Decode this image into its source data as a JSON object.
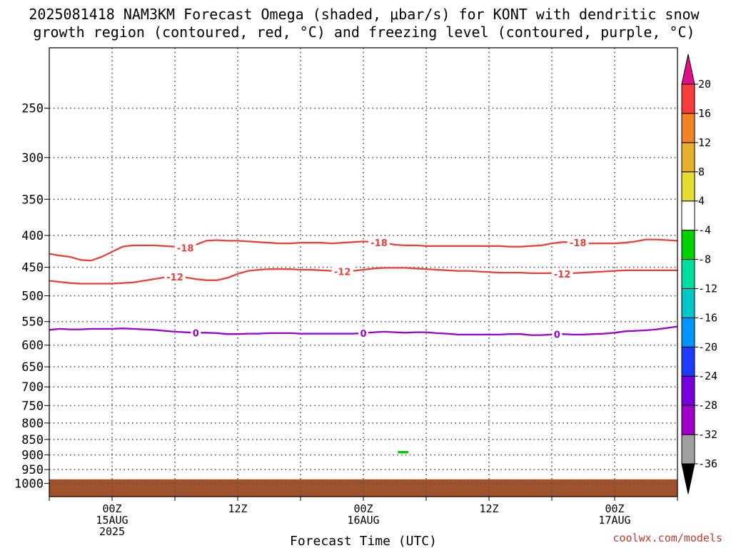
{
  "title_line1": "2025081418 NAM3KM Forecast Omega (shaded, μbar/s) for KONT with dendritic snow",
  "title_line2": "growth region (contoured, red, °C) and freezing level (contoured, purple, °C)",
  "credit": "coolwx.com/models",
  "chart_data": {
    "type": "time-height contour",
    "xlabel": "Forecast Time (UTC)",
    "ylabel": "",
    "x_units": "forecast hours from 2025-08-14 18Z",
    "xlim": [
      0,
      60
    ],
    "y_units": "hPa",
    "ylim": [
      200,
      1050
    ],
    "y_scale": "log",
    "y_ticks": [
      250,
      300,
      350,
      400,
      450,
      500,
      550,
      600,
      650,
      700,
      750,
      800,
      850,
      900,
      950,
      1000
    ],
    "x_ticks": [
      {
        "x": 6,
        "lines": [
          "00Z",
          "15AUG",
          "2025"
        ]
      },
      {
        "x": 18,
        "lines": [
          "12Z"
        ]
      },
      {
        "x": 30,
        "lines": [
          "00Z",
          "16AUG"
        ]
      },
      {
        "x": 42,
        "lines": [
          "12Z"
        ]
      },
      {
        "x": 54,
        "lines": [
          "00Z",
          "17AUG"
        ]
      }
    ],
    "grid": true,
    "series": [
      {
        "name": "-18",
        "color": "#e8413c",
        "label_at": [
          13,
          31.5,
          50.5
        ],
        "x": [
          0,
          1,
          2,
          3,
          4,
          5,
          6,
          7,
          8,
          9,
          10,
          11,
          12,
          13,
          14,
          15,
          16,
          17,
          18,
          19,
          20,
          21,
          22,
          23,
          24,
          25,
          26,
          27,
          28,
          29,
          30,
          31,
          32,
          33,
          34,
          35,
          36,
          37,
          38,
          39,
          40,
          41,
          42,
          43,
          44,
          45,
          46,
          47,
          48,
          49,
          50,
          51,
          52,
          53,
          54,
          55,
          56,
          57,
          58,
          59,
          60
        ],
        "y": [
          428,
          431,
          433,
          438,
          439,
          433,
          425,
          417,
          415,
          415,
          415,
          416,
          417,
          419,
          414,
          408,
          407,
          408,
          408,
          409,
          410,
          411,
          412,
          412,
          411,
          411,
          411,
          412,
          411,
          410,
          409,
          410,
          411,
          414,
          415,
          415,
          416,
          416,
          416,
          416,
          416,
          416,
          416,
          416,
          417,
          417,
          416,
          415,
          412,
          410,
          410,
          412,
          412,
          412,
          412,
          411,
          409,
          406,
          406,
          407,
          408
        ]
      },
      {
        "name": "-12",
        "color": "#e8413c",
        "label_at": [
          12,
          28,
          49
        ],
        "x": [
          0,
          1,
          2,
          3,
          4,
          5,
          6,
          7,
          8,
          9,
          10,
          11,
          12,
          13,
          14,
          15,
          16,
          17,
          18,
          19,
          20,
          21,
          22,
          23,
          24,
          25,
          26,
          27,
          28,
          29,
          30,
          31,
          32,
          33,
          34,
          35,
          36,
          37,
          38,
          39,
          40,
          41,
          42,
          43,
          44,
          45,
          46,
          47,
          48,
          49,
          50,
          51,
          52,
          53,
          54,
          55,
          56,
          57,
          58,
          59,
          60
        ],
        "y": [
          473,
          475,
          477,
          478,
          478,
          478,
          478,
          477,
          476,
          473,
          470,
          467,
          466,
          467,
          470,
          472,
          472,
          468,
          461,
          456,
          454,
          453,
          453,
          453,
          454,
          454,
          455,
          456,
          457,
          456,
          454,
          452,
          451,
          451,
          451,
          452,
          453,
          454,
          455,
          456,
          456,
          457,
          458,
          459,
          459,
          459,
          460,
          460,
          460,
          461,
          460,
          459,
          458,
          457,
          456,
          455,
          455,
          455,
          455,
          455,
          455
        ]
      },
      {
        "name": "0",
        "color": "#9900c8",
        "label_at": [
          14,
          30,
          48.5
        ],
        "x": [
          0,
          1,
          2,
          3,
          4,
          5,
          6,
          7,
          8,
          9,
          10,
          11,
          12,
          13,
          14,
          15,
          16,
          17,
          18,
          19,
          20,
          21,
          22,
          23,
          24,
          25,
          26,
          27,
          28,
          29,
          30,
          31,
          32,
          33,
          34,
          35,
          36,
          37,
          38,
          39,
          40,
          41,
          42,
          43,
          44,
          45,
          46,
          47,
          48,
          49,
          50,
          51,
          52,
          53,
          54,
          55,
          56,
          57,
          58,
          59,
          60
        ],
        "y": [
          567,
          565,
          566,
          566,
          565,
          565,
          565,
          564,
          565,
          566,
          567,
          569,
          571,
          572,
          573,
          573,
          574,
          576,
          576,
          575,
          575,
          574,
          574,
          574,
          575,
          575,
          575,
          575,
          575,
          575,
          574,
          572,
          571,
          572,
          573,
          572,
          572,
          574,
          575,
          577,
          577,
          577,
          577,
          577,
          576,
          576,
          578,
          578,
          577,
          576,
          577,
          577,
          576,
          575,
          573,
          570,
          569,
          568,
          566,
          563,
          560
        ]
      }
    ],
    "shading": [
      {
        "type": "omega",
        "value": -6,
        "x_range": [
          33.3,
          34.3
        ],
        "y_range": [
          887,
          895
        ],
        "color": "#00c800"
      },
      {
        "type": "below-ground",
        "x_range": [
          0,
          60
        ],
        "y_range": [
          985,
          1050
        ],
        "color": "#a0522d"
      }
    ],
    "colorbar": {
      "levels": [
        -36,
        -32,
        -28,
        -24,
        -20,
        -16,
        -12,
        -8,
        -4,
        4,
        8,
        12,
        16,
        20
      ],
      "colors": [
        "#a0a0a0",
        "#a000c8",
        "#7800dc",
        "#1e3cff",
        "#0096ff",
        "#00c8c8",
        "#00dca0",
        "#00d200",
        "#ffffff",
        "#e6dc32",
        "#e6af2d",
        "#f08228",
        "#fa3c3c"
      ],
      "extend_low_color": "#000000",
      "extend_high_color": "#e0108c"
    }
  }
}
